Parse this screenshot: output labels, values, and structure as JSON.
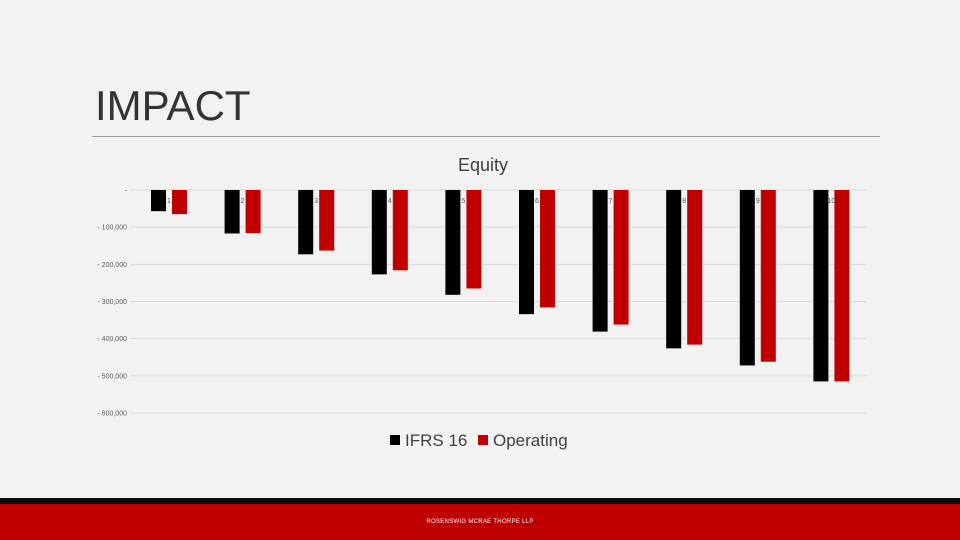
{
  "slide": {
    "title": "IMPACT",
    "footer": "ROSENSWIG MCRAE THORPE LLP"
  },
  "chart_data": {
    "type": "bar",
    "title": "Equity",
    "xlabel": "",
    "ylabel": "",
    "categories": [
      "1",
      "2",
      "3",
      "4",
      "5",
      "6",
      "7",
      "8",
      "9",
      "10"
    ],
    "series": [
      {
        "name": "IFRS 16",
        "color": "#000000",
        "values": [
          -57000,
          -117000,
          -173000,
          -227000,
          -282000,
          -334000,
          -381000,
          -426000,
          -472000,
          -515000
        ]
      },
      {
        "name": "Operating",
        "color": "#c00000",
        "values": [
          -65000,
          -116000,
          -163000,
          -216000,
          -265000,
          -316000,
          -362000,
          -416000,
          -462000,
          -515000
        ]
      }
    ],
    "ylim": [
      -600000,
      0
    ],
    "yticks": [
      0,
      -100000,
      -200000,
      -300000,
      -400000,
      -500000,
      -600000
    ],
    "ytick_labels": [
      "-",
      "- 100,000",
      "- 200,000",
      "- 300,000",
      "- 400,000",
      "- 500,000",
      "- 600,000"
    ],
    "grid": true,
    "legend_position": "bottom"
  }
}
